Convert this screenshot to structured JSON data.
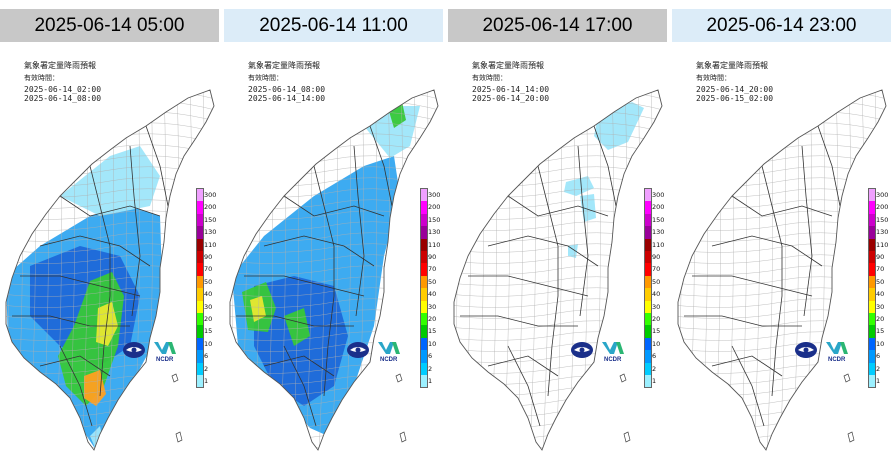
{
  "panels": [
    {
      "tab": "2025-06-14 05:00",
      "tab_style": "grey",
      "map_title": "氣象署定量降雨預報",
      "valid_label": "有效時間：",
      "start": "2025-06-14_02:00",
      "end": "2025-06-14_08:00",
      "rain_level": "heavy"
    },
    {
      "tab": "2025-06-14 11:00",
      "tab_style": "blue",
      "map_title": "氣象署定量降雨預報",
      "valid_label": "有效時間：",
      "start": "2025-06-14_08:00",
      "end": "2025-06-14_14:00",
      "rain_level": "moderate"
    },
    {
      "tab": "2025-06-14 17:00",
      "tab_style": "grey",
      "map_title": "氣象署定量降雨預報",
      "valid_label": "有效時間：",
      "start": "2025-06-14_14:00",
      "end": "2025-06-14_20:00",
      "rain_level": "light"
    },
    {
      "tab": "2025-06-14 23:00",
      "tab_style": "blue",
      "map_title": "氣象署定量降雨預報",
      "valid_label": "有效時間：",
      "start": "2025-06-14_20:00",
      "end": "2025-06-15_02:00",
      "rain_level": "none"
    }
  ],
  "scale": {
    "labels": [
      "300",
      "200",
      "150",
      "130",
      "110",
      "90",
      "70",
      "50",
      "40",
      "30",
      "20",
      "15",
      "10",
      "6",
      "2",
      "1"
    ],
    "colors": [
      "#f0a0ff",
      "#ff00ff",
      "#cc00cc",
      "#990099",
      "#990000",
      "#cc0000",
      "#ff0000",
      "#ff9900",
      "#ffcc00",
      "#ffff00",
      "#33ff00",
      "#00cc00",
      "#0066ff",
      "#0099ff",
      "#00ccff",
      "#9cf0ff"
    ]
  },
  "logos": {
    "left_icon": "cwa-logo-icon",
    "right_text": "NCDR"
  },
  "island_marker": "lanyu-island-icon",
  "colors": {
    "light_rain": "#9ee6fa",
    "mid_rain": "#33a6f0",
    "deep_rain": "#1e68d8",
    "green_rain": "#38c838",
    "yellow_rain": "#e8e830",
    "orange_rain": "#ffa020"
  }
}
